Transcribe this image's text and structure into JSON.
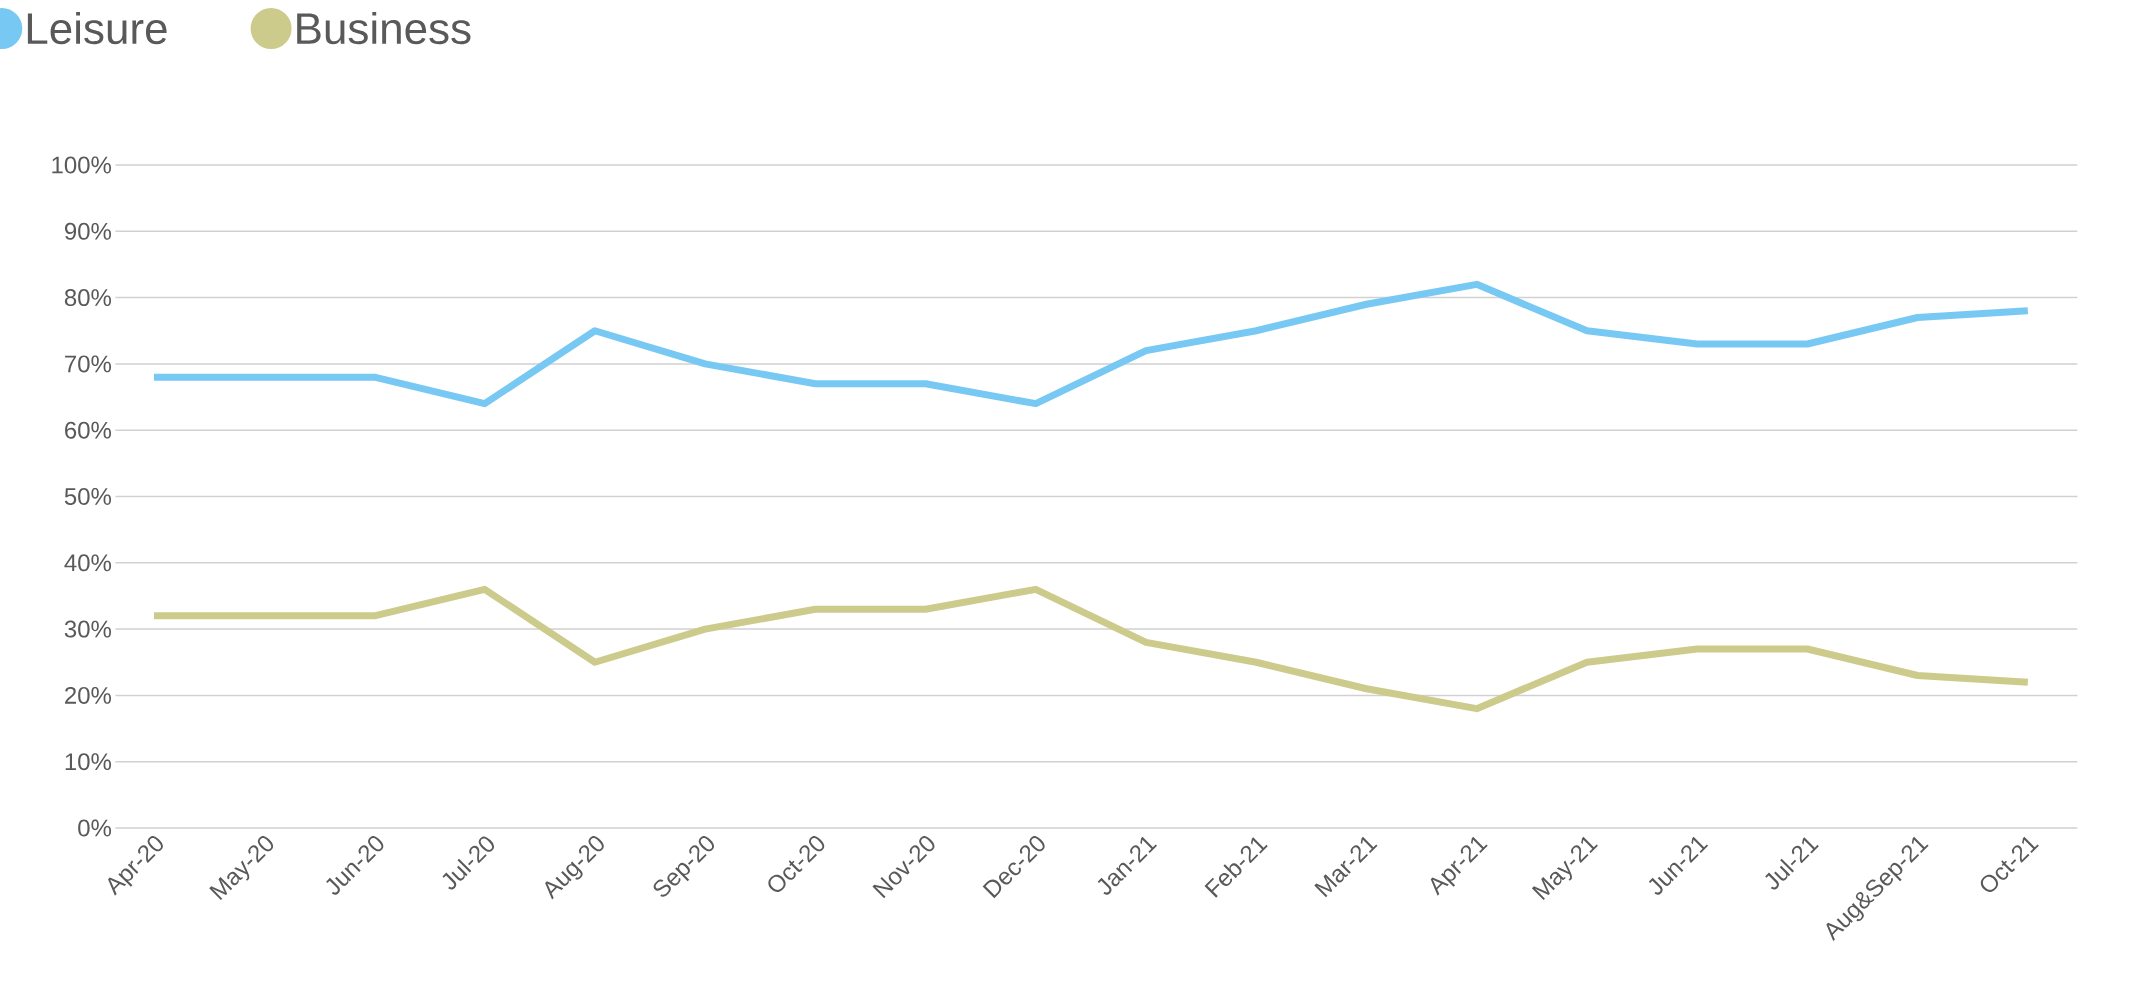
{
  "chart_data": {
    "type": "line",
    "categories": [
      "Apr-20",
      "May-20",
      "Jun-20",
      "Jul-20",
      "Aug-20",
      "Sep-20",
      "Oct-20",
      "Nov-20",
      "Dec-20",
      "Jan-21",
      "Feb-21",
      "Mar-21",
      "Apr-21",
      "May-21",
      "Jun-21",
      "Jul-21",
      "Aug&Sep-21",
      "Oct-21"
    ],
    "series": [
      {
        "name": "Leisure",
        "color": "#78c8f4",
        "values": [
          68,
          68,
          68,
          64,
          75,
          70,
          67,
          67,
          64,
          72,
          75,
          79,
          82,
          75,
          73,
          73,
          77,
          78
        ]
      },
      {
        "name": "Business",
        "color": "#cccb8c",
        "values": [
          32,
          32,
          32,
          36,
          25,
          30,
          33,
          33,
          36,
          28,
          25,
          21,
          18,
          25,
          27,
          27,
          23,
          22
        ]
      }
    ],
    "ylim": [
      0,
      100
    ],
    "yticks": [
      {
        "value": 0,
        "label": "0%"
      },
      {
        "value": 10,
        "label": "10%"
      },
      {
        "value": 20,
        "label": "20%"
      },
      {
        "value": 30,
        "label": "30%"
      },
      {
        "value": 40,
        "label": "40%"
      },
      {
        "value": 50,
        "label": "50%"
      },
      {
        "value": 60,
        "label": "60%"
      },
      {
        "value": 70,
        "label": "70%"
      },
      {
        "value": 80,
        "label": "80%"
      },
      {
        "value": 90,
        "label": "90%"
      },
      {
        "value": 100,
        "label": "100%"
      }
    ],
    "grid": "y",
    "legend": "top left",
    "marker": "none",
    "line_style": "solid"
  }
}
